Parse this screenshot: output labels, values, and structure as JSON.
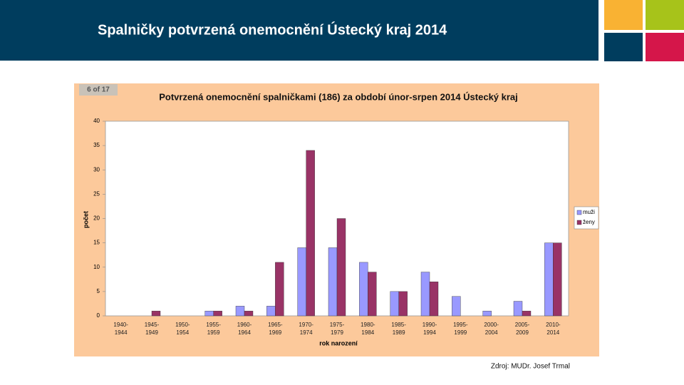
{
  "slide_title": "Spalničky potvrzená onemocnění Ústecký kraj 2014",
  "badge": "6 of 17",
  "source": "Zdroj: MUDr. Josef Trmal",
  "chart_data": {
    "type": "bar",
    "title": "Potvrzená onemocnění spalničkami (186) za období únor-srpen 2014 Ústecký kraj",
    "x_label": "rok narození",
    "y_label": "počet",
    "categories": [
      "1940-1944",
      "1945-1949",
      "1950-1954",
      "1955-1959",
      "1960-1964",
      "1965-1969",
      "1970-1974",
      "1975-1979",
      "1980-1984",
      "1985-1989",
      "1990-1994",
      "1995-1999",
      "2000-2004",
      "2005-2009",
      "2010-2014"
    ],
    "series": [
      {
        "name": "muži",
        "color": "#9999ff",
        "values": [
          0,
          0,
          0,
          1,
          2,
          2,
          14,
          14,
          11,
          5,
          9,
          4,
          1,
          3,
          15
        ]
      },
      {
        "name": "ženy",
        "color": "#993366",
        "values": [
          0,
          1,
          0,
          1,
          1,
          11,
          34,
          20,
          9,
          5,
          7,
          0,
          0,
          1,
          15
        ]
      }
    ],
    "ylim": [
      0,
      40
    ],
    "yticks": [
      0,
      5,
      10,
      15,
      20,
      25,
      30,
      35,
      40
    ],
    "grid": false,
    "legend": "right"
  }
}
